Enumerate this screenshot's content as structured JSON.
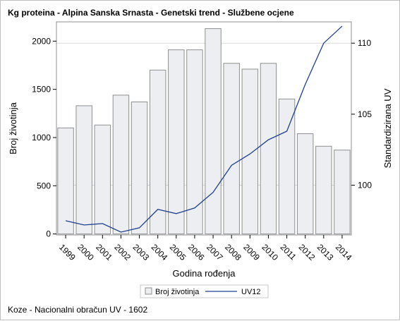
{
  "title": "Kg proteina - Alpina Sanska Srnasta - Genetski trend - Službene ocjene",
  "footnote": "Koze - Nacionalni obračun UV - 1602",
  "chart_data": {
    "type": "bar",
    "categories": [
      "1999",
      "2000",
      "2001",
      "2002",
      "2003",
      "2004",
      "2005",
      "2006",
      "2007",
      "2008",
      "2009",
      "2010",
      "2011",
      "2012",
      "2013",
      "2014"
    ],
    "series": [
      {
        "name": "Broj životinja",
        "type": "bar",
        "axis": "left",
        "values": [
          1100,
          1330,
          1130,
          1440,
          1370,
          1700,
          1910,
          1910,
          2130,
          1770,
          1710,
          1770,
          1400,
          1040,
          910,
          870
        ]
      },
      {
        "name": "UV12",
        "type": "line",
        "axis": "right",
        "values": [
          97.5,
          97.2,
          97.3,
          96.7,
          97.0,
          98.3,
          98.0,
          98.4,
          99.5,
          101.4,
          102.2,
          103.2,
          103.8,
          107.1,
          110.0,
          111.2
        ]
      }
    ],
    "xlabel": "Godina rođenja",
    "ylabel": "Broj životinja",
    "y2label": "Standardizirana UV",
    "ylim": [
      -10,
      2200
    ],
    "y2lim": [
      96.5,
      111.5
    ],
    "yticks": [
      0,
      500,
      1000,
      1500,
      2000
    ],
    "y2ticks": [
      100,
      105,
      110
    ],
    "reference_lines_y2": [
      100,
      110
    ],
    "legend_position": "bottom-center",
    "bar_fill": "#eceef2",
    "bar_stroke": "#8f8f8f",
    "line_color": "#1f3f8f"
  }
}
